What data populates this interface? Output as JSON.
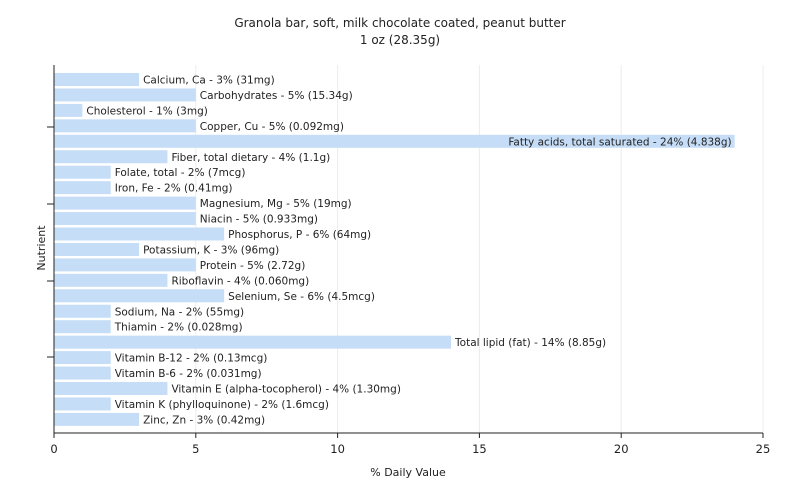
{
  "chart_data": {
    "type": "bar",
    "orientation": "horizontal",
    "title": "Granola bar, soft, milk chocolate coated, peanut butter",
    "subtitle": "1 oz (28.35g)",
    "xlabel": "% Daily Value",
    "ylabel": "Nutrient",
    "xlim": [
      0,
      25
    ],
    "xticks": [
      0,
      5,
      10,
      15,
      20,
      25
    ],
    "grid": true,
    "bar_color": "#c6ddf7",
    "categories": [
      "Calcium, Ca",
      "Carbohydrates",
      "Cholesterol",
      "Copper, Cu",
      "Fatty acids, total saturated",
      "Fiber, total dietary",
      "Folate, total",
      "Iron, Fe",
      "Magnesium, Mg",
      "Niacin",
      "Phosphorus, P",
      "Potassium, K",
      "Protein",
      "Riboflavin",
      "Selenium, Se",
      "Sodium, Na",
      "Thiamin",
      "Total lipid (fat)",
      "Vitamin B-12",
      "Vitamin B-6",
      "Vitamin E (alpha-tocopherol)",
      "Vitamin K (phylloquinone)",
      "Zinc, Zn"
    ],
    "values": [
      3,
      5,
      1,
      5,
      24,
      4,
      2,
      2,
      5,
      5,
      6,
      3,
      5,
      4,
      6,
      2,
      2,
      14,
      2,
      2,
      4,
      2,
      3
    ],
    "labels": [
      "Calcium, Ca - 3% (31mg)",
      "Carbohydrates - 5% (15.34g)",
      "Cholesterol - 1% (3mg)",
      "Copper, Cu - 5% (0.092mg)",
      "Fatty acids, total saturated - 24% (4.838g)",
      "Fiber, total dietary - 4% (1.1g)",
      "Folate, total - 2% (7mcg)",
      "Iron, Fe - 2% (0.41mg)",
      "Magnesium, Mg - 5% (19mg)",
      "Niacin - 5% (0.933mg)",
      "Phosphorus, P - 6% (64mg)",
      "Potassium, K - 3% (96mg)",
      "Protein - 5% (2.72g)",
      "Riboflavin - 4% (0.060mg)",
      "Selenium, Se - 6% (4.5mcg)",
      "Sodium, Na - 2% (55mg)",
      "Thiamin - 2% (0.028mg)",
      "Total lipid (fat) - 14% (8.85g)",
      "Vitamin B-12 - 2% (0.13mcg)",
      "Vitamin B-6 - 2% (0.031mg)",
      "Vitamin E (alpha-tocopherol) - 4% (1.30mg)",
      "Vitamin K (phylloquinone) - 2% (1.6mcg)",
      "Zinc, Zn - 3% (0.42mg)"
    ]
  }
}
